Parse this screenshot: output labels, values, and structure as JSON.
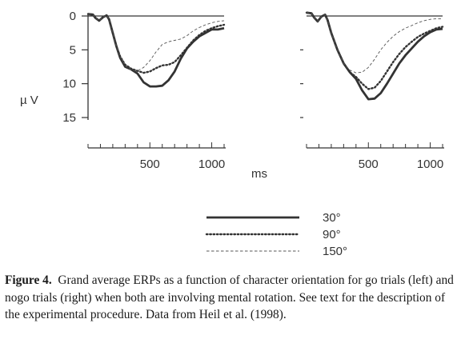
{
  "figure": {
    "label": "Figure 4.",
    "caption_text": "Grand average ERPs as a function of character orientation for go trials (left) and nogo trials (right) when both are involving mental rotation. See text for the description of the experimental procedure. Data from Heil et al. (1998).",
    "colors": {
      "ink": "#333333",
      "dashed_line": "#555555"
    }
  },
  "chart_data": [
    {
      "type": "line",
      "title": "",
      "xlabel": "ms",
      "ylabel": "µ V",
      "xlim": [
        0,
        1100
      ],
      "ylim": [
        0,
        15
      ],
      "y_inverted": true,
      "x_ticks": [
        500,
        1000
      ],
      "x_tick_labels": [
        "500",
        "1000"
      ],
      "y_ticks": [
        0,
        5,
        10,
        15
      ],
      "y_tick_labels": [
        "0",
        "5",
        "10",
        "15"
      ],
      "legend_position": "bottom-center",
      "series": [
        {
          "name": "30°",
          "style": "solid",
          "x": [
            0,
            40,
            60,
            90,
            120,
            150,
            170,
            200,
            230,
            260,
            300,
            350,
            400,
            450,
            500,
            550,
            600,
            650,
            700,
            750,
            800,
            850,
            900,
            950,
            1000,
            1050,
            1100
          ],
          "y": [
            -0.3,
            -0.2,
            0.3,
            0.7,
            0.2,
            -0.1,
            0.5,
            2.5,
            4.5,
            6.2,
            7.5,
            7.9,
            8.5,
            9.8,
            10.4,
            10.4,
            10.3,
            9.5,
            8.2,
            6.3,
            4.8,
            3.8,
            3.0,
            2.5,
            2.0,
            2.0,
            1.8
          ]
        },
        {
          "name": "90°",
          "style": "dotted",
          "x": [
            0,
            40,
            60,
            90,
            120,
            150,
            170,
            200,
            230,
            260,
            300,
            350,
            400,
            450,
            500,
            550,
            600,
            650,
            700,
            750,
            800,
            850,
            900,
            950,
            1000,
            1050,
            1100
          ],
          "y": [
            -0.3,
            -0.2,
            0.3,
            0.7,
            0.2,
            -0.1,
            0.5,
            2.5,
            4.5,
            6.0,
            7.2,
            7.8,
            8.1,
            8.4,
            8.2,
            7.7,
            7.3,
            7.2,
            6.8,
            5.8,
            4.7,
            3.6,
            2.8,
            2.2,
            1.8,
            1.5,
            1.3
          ]
        },
        {
          "name": "150°",
          "style": "dashed",
          "x": [
            0,
            40,
            60,
            90,
            120,
            150,
            170,
            200,
            230,
            260,
            300,
            350,
            400,
            450,
            500,
            550,
            600,
            650,
            700,
            750,
            800,
            850,
            900,
            950,
            1000,
            1050,
            1100
          ],
          "y": [
            -0.3,
            -0.2,
            0.3,
            0.7,
            0.2,
            -0.1,
            0.5,
            2.5,
            4.5,
            6.0,
            7.3,
            8.0,
            8.1,
            7.6,
            6.6,
            5.3,
            4.2,
            3.8,
            3.6,
            3.4,
            2.9,
            2.2,
            1.7,
            1.3,
            1.0,
            0.8,
            0.7
          ]
        }
      ]
    },
    {
      "type": "line",
      "title": "",
      "xlabel": "",
      "ylabel": "",
      "xlim": [
        0,
        1100
      ],
      "ylim": [
        0,
        15
      ],
      "y_inverted": true,
      "x_ticks": [
        500,
        1000
      ],
      "x_tick_labels": [
        "500",
        "1000"
      ],
      "y_ticks": [
        0,
        5,
        10,
        15
      ],
      "y_tick_labels": [],
      "series": [
        {
          "name": "30°",
          "style": "solid",
          "x": [
            0,
            40,
            60,
            90,
            120,
            150,
            170,
            200,
            250,
            300,
            350,
            400,
            450,
            500,
            550,
            600,
            650,
            700,
            750,
            800,
            850,
            900,
            950,
            1000,
            1050,
            1100
          ],
          "y": [
            -0.5,
            -0.4,
            0.2,
            0.8,
            0.1,
            -0.2,
            0.6,
            2.5,
            5.0,
            7.0,
            8.3,
            9.3,
            11.0,
            12.3,
            12.2,
            11.4,
            10.0,
            8.5,
            7.0,
            5.8,
            4.8,
            3.8,
            3.0,
            2.4,
            2.0,
            1.9
          ]
        },
        {
          "name": "90°",
          "style": "dotted",
          "x": [
            0,
            40,
            60,
            90,
            120,
            150,
            170,
            200,
            250,
            300,
            350,
            400,
            450,
            500,
            550,
            600,
            650,
            700,
            750,
            800,
            850,
            900,
            950,
            1000,
            1050,
            1100
          ],
          "y": [
            -0.5,
            -0.4,
            0.2,
            0.8,
            0.1,
            -0.2,
            0.6,
            2.5,
            5.0,
            7.0,
            8.3,
            9.0,
            10.0,
            10.8,
            10.6,
            9.6,
            8.2,
            6.8,
            5.6,
            4.6,
            3.8,
            3.1,
            2.6,
            2.2,
            1.8,
            1.6
          ]
        },
        {
          "name": "150°",
          "style": "dashed",
          "x": [
            0,
            40,
            60,
            90,
            120,
            150,
            170,
            200,
            250,
            300,
            350,
            400,
            450,
            500,
            550,
            600,
            650,
            700,
            750,
            800,
            850,
            900,
            950,
            1000,
            1050,
            1100
          ],
          "y": [
            -0.5,
            -0.4,
            0.2,
            0.8,
            0.1,
            -0.2,
            0.6,
            2.5,
            5.0,
            7.0,
            8.0,
            8.4,
            8.3,
            7.6,
            6.4,
            5.0,
            3.9,
            3.0,
            2.3,
            1.8,
            1.4,
            1.0,
            0.7,
            0.5,
            0.4,
            0.4
          ]
        }
      ]
    }
  ]
}
